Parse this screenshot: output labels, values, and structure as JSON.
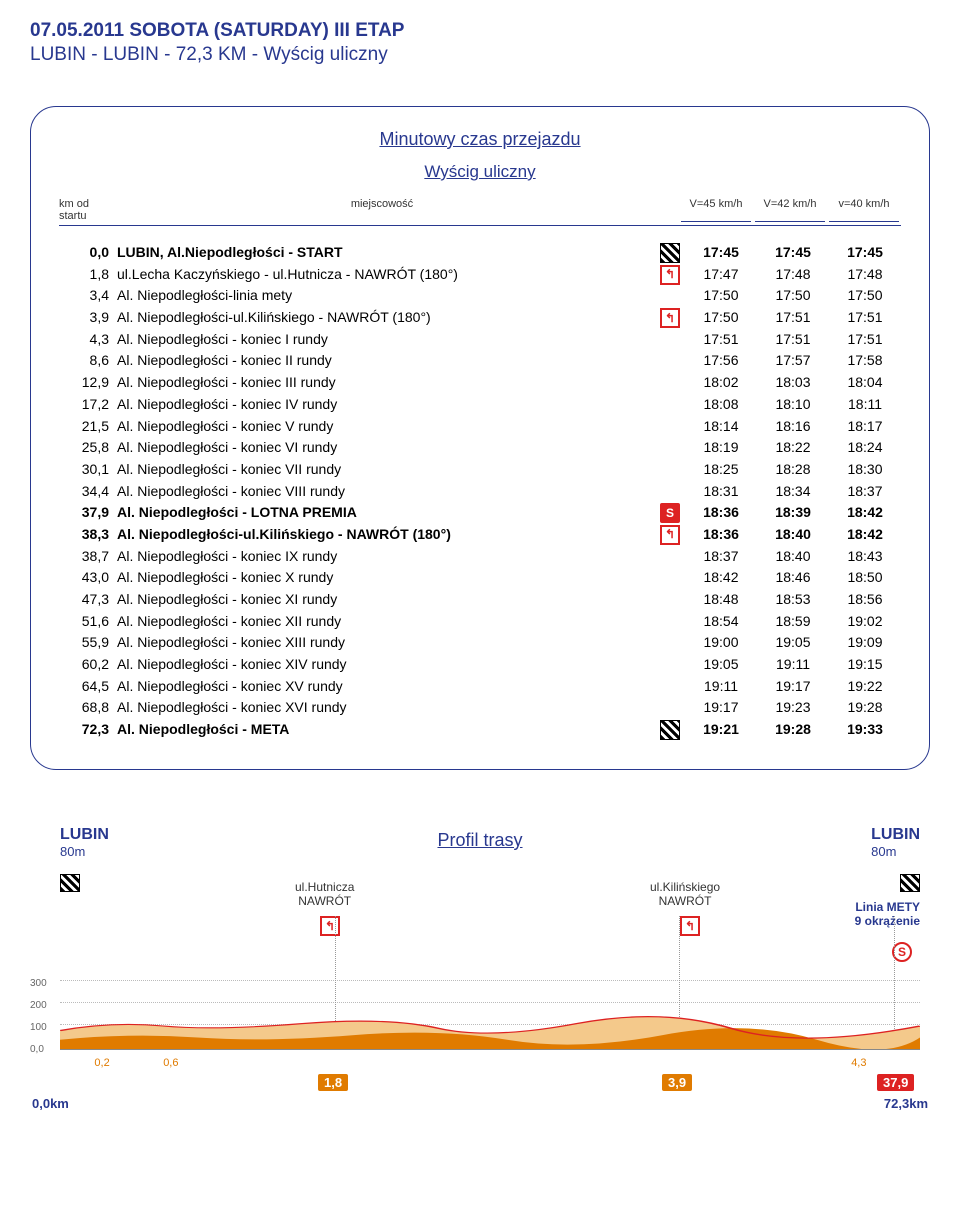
{
  "header": {
    "date_line": "07.05.2011  SOBOTA (SATURDAY) III ETAP",
    "route_line": "LUBIN - LUBIN  - 72,3 KM - Wyścig uliczny"
  },
  "panel": {
    "title": "Minutowy czas przejazdu",
    "subtitle": "Wyścig uliczny",
    "col_headers": {
      "km": "km od startu",
      "loc": "miejscowość",
      "v45": "V=45 km/h",
      "v42": "V=42 km/h",
      "v40": "v=40 km/h"
    }
  },
  "rows": [
    {
      "km": "0,0",
      "loc": "LUBIN, Al.Niepodległości - START",
      "icon": "flag",
      "t45": "17:45",
      "t42": "17:45",
      "t40": "17:45",
      "bold": true
    },
    {
      "km": "1,8",
      "loc": "ul.Lecha Kaczyńskiego - ul.Hutnicza - NAWRÓT  (180°)",
      "icon": "turn",
      "t45": "17:47",
      "t42": "17:48",
      "t40": "17:48"
    },
    {
      "km": "3,4",
      "loc": "Al. Niepodległości-linia mety",
      "icon": "",
      "t45": "17:50",
      "t42": "17:50",
      "t40": "17:50"
    },
    {
      "km": "3,9",
      "loc": "Al. Niepodległości-ul.Kilińskiego - NAWRÓT  (180°)",
      "icon": "turn",
      "t45": "17:50",
      "t42": "17:51",
      "t40": "17:51"
    },
    {
      "km": "4,3",
      "loc": "Al. Niepodległości - koniec I rundy",
      "icon": "",
      "t45": "17:51",
      "t42": "17:51",
      "t40": "17:51"
    },
    {
      "km": "8,6",
      "loc": "Al. Niepodległości - koniec II rundy",
      "icon": "",
      "t45": "17:56",
      "t42": "17:57",
      "t40": "17:58"
    },
    {
      "km": "12,9",
      "loc": "Al. Niepodległości - koniec III rundy",
      "icon": "",
      "t45": "18:02",
      "t42": "18:03",
      "t40": "18:04"
    },
    {
      "km": "17,2",
      "loc": "Al. Niepodległości - koniec IV rundy",
      "icon": "",
      "t45": "18:08",
      "t42": "18:10",
      "t40": "18:11"
    },
    {
      "km": "21,5",
      "loc": "Al. Niepodległości - koniec V rundy",
      "icon": "",
      "t45": "18:14",
      "t42": "18:16",
      "t40": "18:17"
    },
    {
      "km": "25,8",
      "loc": "Al. Niepodległości - koniec VI rundy",
      "icon": "",
      "t45": "18:19",
      "t42": "18:22",
      "t40": "18:24"
    },
    {
      "km": "30,1",
      "loc": "Al. Niepodległości - koniec VII rundy",
      "icon": "",
      "t45": "18:25",
      "t42": "18:28",
      "t40": "18:30"
    },
    {
      "km": "34,4",
      "loc": "Al. Niepodległości - koniec VIII rundy",
      "icon": "",
      "t45": "18:31",
      "t42": "18:34",
      "t40": "18:37"
    },
    {
      "km": "37,9",
      "loc": "Al. Niepodległości - LOTNA PREMIA",
      "icon": "s",
      "t45": "18:36",
      "t42": "18:39",
      "t40": "18:42",
      "bold": true
    },
    {
      "km": "38,3",
      "loc": "Al. Niepodległości-ul.Kilińskiego - NAWRÓT  (180°)",
      "icon": "turn",
      "t45": "18:36",
      "t42": "18:40",
      "t40": "18:42",
      "bold": true
    },
    {
      "km": "38,7",
      "loc": "Al. Niepodległości - koniec IX rundy",
      "icon": "",
      "t45": "18:37",
      "t42": "18:40",
      "t40": "18:43"
    },
    {
      "km": "43,0",
      "loc": "Al. Niepodległości - koniec X rundy",
      "icon": "",
      "t45": "18:42",
      "t42": "18:46",
      "t40": "18:50"
    },
    {
      "km": "47,3",
      "loc": "Al. Niepodległości - koniec XI rundy",
      "icon": "",
      "t45": "18:48",
      "t42": "18:53",
      "t40": "18:56"
    },
    {
      "km": "51,6",
      "loc": "Al. Niepodległości - koniec XII rundy",
      "icon": "",
      "t45": "18:54",
      "t42": "18:59",
      "t40": "19:02"
    },
    {
      "km": "55,9",
      "loc": "Al. Niepodległości - koniec XIII rundy",
      "icon": "",
      "t45": "19:00",
      "t42": "19:05",
      "t40": "19:09"
    },
    {
      "km": "60,2",
      "loc": "Al. Niepodległości - koniec XIV rundy",
      "icon": "",
      "t45": "19:05",
      "t42": "19:11",
      "t40": "19:15"
    },
    {
      "km": "64,5",
      "loc": "Al. Niepodległości - koniec XV rundy",
      "icon": "",
      "t45": "19:11",
      "t42": "19:17",
      "t40": "19:22"
    },
    {
      "km": "68,8",
      "loc": "Al. Niepodległości - koniec XVI rundy",
      "icon": "",
      "t45": "19:17",
      "t42": "19:23",
      "t40": "19:28"
    },
    {
      "km": "72,3",
      "loc": "Al. Niepodległości - META",
      "icon": "flag",
      "t45": "19:21",
      "t42": "19:28",
      "t40": "19:33",
      "bold": true
    }
  ],
  "profile": {
    "title": "Profil trasy",
    "left_city": "LUBIN",
    "left_elev": "80m",
    "right_city": "LUBIN",
    "right_elev": "80m",
    "meta_label": "Linia METY\n9 okrążenie",
    "mark1": {
      "l1": "ul.Hutnicza",
      "l2": "NAWRÓT"
    },
    "mark2": {
      "l1": "ul.Kilińskiego",
      "l2": "NAWRÓT"
    },
    "y_labels": [
      "300",
      "200",
      "100",
      "0,0"
    ],
    "x_small": [
      "0,2",
      "0,6",
      "4,3"
    ],
    "x_big": [
      "1,8",
      "3,9",
      "37,9"
    ],
    "x_base": [
      "0,0km",
      "72,3km"
    ],
    "colors": {
      "fill1": "#f4c98b",
      "fill2": "#e07b00",
      "line": "#d22"
    }
  }
}
